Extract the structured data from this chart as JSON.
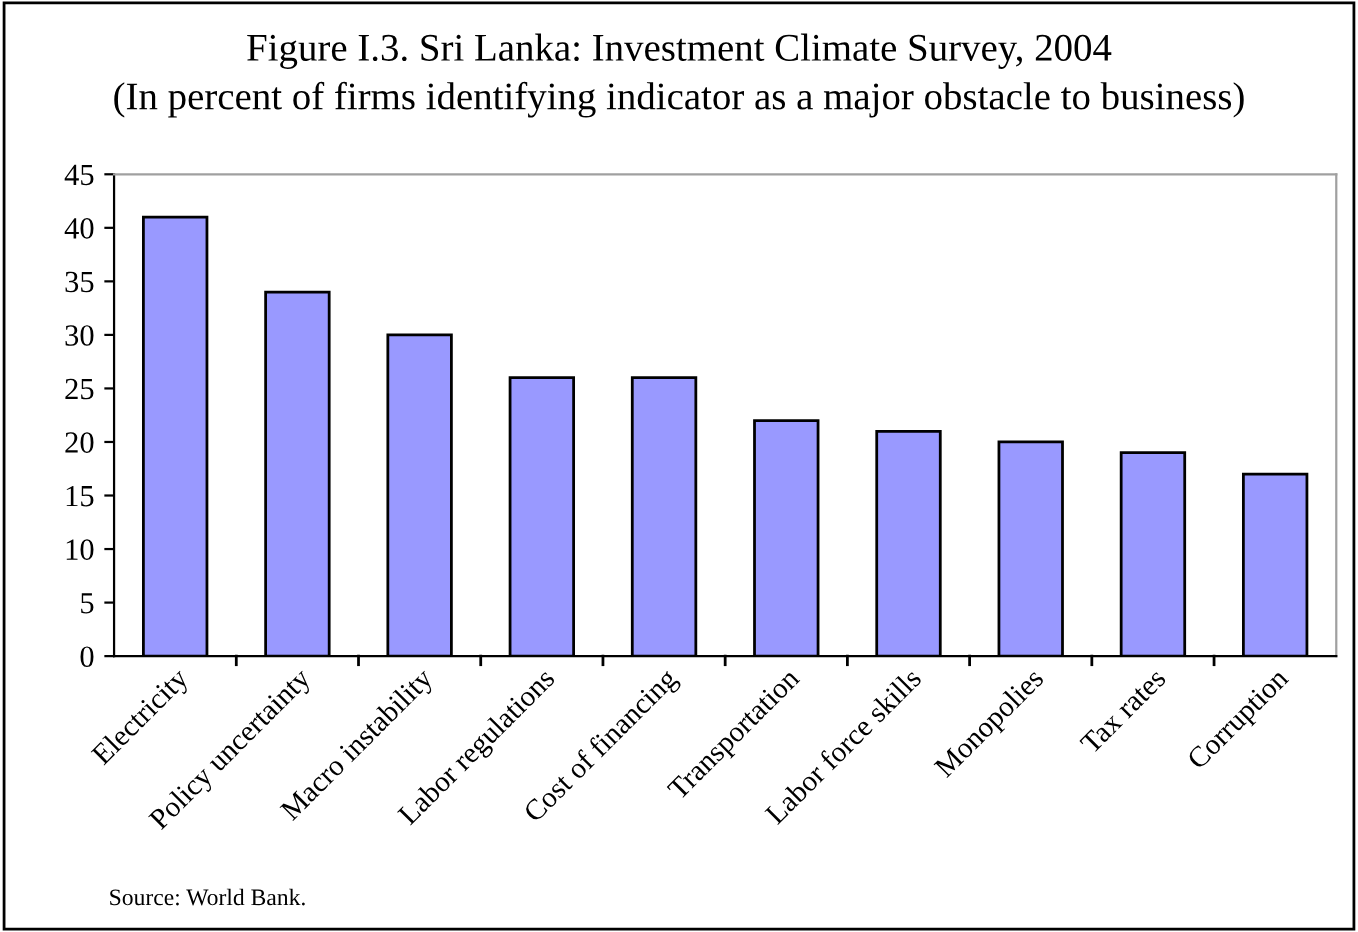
{
  "chart_data": {
    "type": "bar",
    "title": "Figure I.3. Sri Lanka: Investment Climate Survey, 2004",
    "subtitle": "(In percent of firms identifying indicator as a major obstacle to business)",
    "categories": [
      "Electricity",
      "Policy uncertainty",
      "Macro instability",
      "Labor regulations",
      "Cost of financing",
      "Transportation",
      "Labor force skills",
      "Monopolies",
      "Tax rates",
      "Corruption"
    ],
    "values": [
      41,
      34,
      30,
      26,
      26,
      22,
      21,
      20,
      19,
      17
    ],
    "color": "#9999ff",
    "ylim": [
      0,
      45
    ],
    "yticks": [
      0,
      5,
      10,
      15,
      20,
      25,
      30,
      35,
      40,
      45
    ],
    "grid": false,
    "legend": false,
    "annotations": [
      "Source: World Bank."
    ]
  }
}
